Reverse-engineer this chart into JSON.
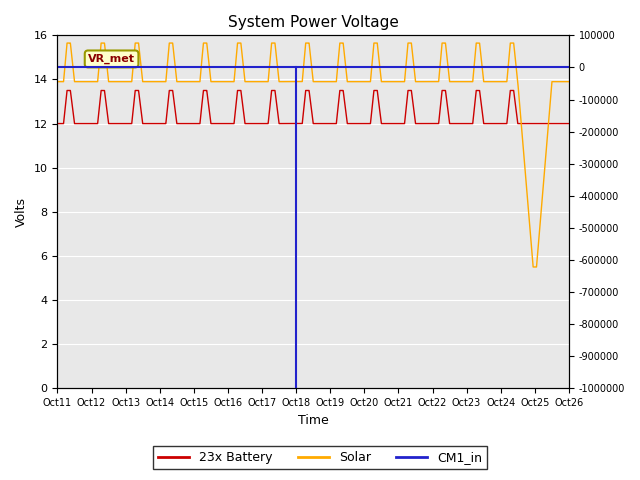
{
  "title": "System Power Voltage",
  "xlabel": "Time",
  "ylabel": "Volts",
  "annotation_text": "VR_met",
  "ylim_left": [
    0,
    16
  ],
  "ylim_right": [
    -1000000,
    100000
  ],
  "yticks_left": [
    0,
    2,
    4,
    6,
    8,
    10,
    12,
    14,
    16
  ],
  "yticks_right": [
    -1000000,
    -900000,
    -800000,
    -700000,
    -600000,
    -500000,
    -400000,
    -300000,
    -200000,
    -100000,
    0,
    100000
  ],
  "x_tick_days": [
    11,
    12,
    13,
    14,
    15,
    16,
    17,
    18,
    19,
    20,
    21,
    22,
    23,
    24,
    25,
    26
  ],
  "x_tick_labels": [
    "Oct 11",
    "Oct 12",
    "Oct 13",
    "Oct 14",
    "Oct 15",
    "Oct 16",
    "Oct 17",
    "Oct 18",
    "Oct 19",
    "Oct 20",
    "Oct 21",
    "Oct 22",
    "Oct 23",
    "Oct 24",
    "Oct 25",
    "Oct 26"
  ],
  "bg_color": "#e8e8e8",
  "legend_labels": [
    "23x Battery",
    "Solar",
    "CM1_in"
  ],
  "battery_color": "#cc0000",
  "solar_color": "#ffaa00",
  "cm1_color": "#2222cc",
  "cm1_value": 14.55,
  "cm1_vert_x": 18.0,
  "battery_low": 12.0,
  "battery_high": 13.5,
  "solar_low": 13.9,
  "solar_high": 15.65,
  "solar_drop_x": 24.5,
  "solar_drop_min": 5.5,
  "anomaly_end": 25.5
}
